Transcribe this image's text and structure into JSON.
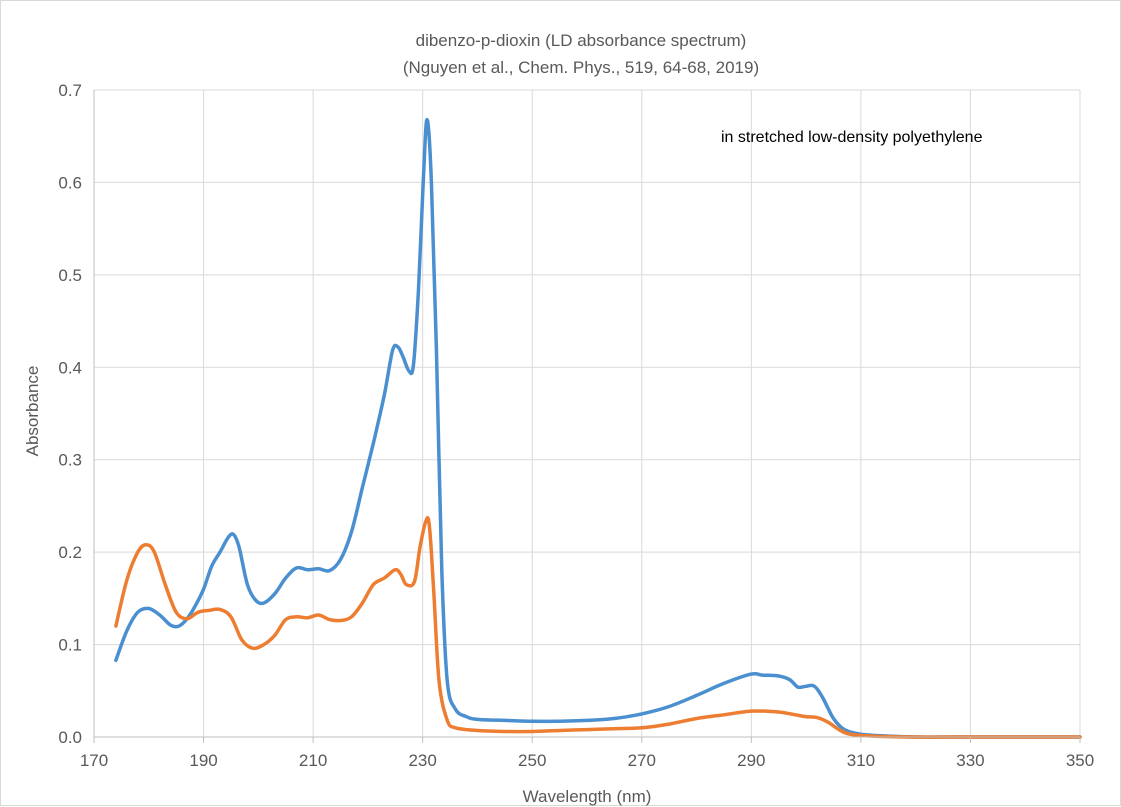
{
  "chart_data": {
    "type": "line",
    "title": "dibenzo-p-dioxin (LD absorbance spectrum)",
    "subtitle": "(Nguyen et al., Chem. Phys., 519, 64-68, 2019)",
    "xlabel": "Wavelength (nm)",
    "ylabel": "Absorbance",
    "annotation": "in stretched low-density polyethylene",
    "xlim": [
      170,
      350
    ],
    "ylim": [
      0,
      0.7
    ],
    "x_ticks": [
      "170",
      "190",
      "210",
      "230",
      "250",
      "270",
      "290",
      "310",
      "330",
      "350"
    ],
    "y_ticks": [
      "0.0",
      "0.1",
      "0.2",
      "0.3",
      "0.4",
      "0.5",
      "0.6",
      "0.7"
    ],
    "grid": true,
    "legend": "none",
    "series": [
      {
        "color": "#4a8fcf",
        "points": [
          [
            174,
            0.083
          ],
          [
            176,
            0.115
          ],
          [
            178,
            0.135
          ],
          [
            180,
            0.139
          ],
          [
            182,
            0.132
          ],
          [
            184,
            0.121
          ],
          [
            185.5,
            0.12
          ],
          [
            187,
            0.128
          ],
          [
            188.5,
            0.142
          ],
          [
            190,
            0.16
          ],
          [
            191.5,
            0.185
          ],
          [
            193,
            0.2
          ],
          [
            194.5,
            0.216
          ],
          [
            195.5,
            0.219
          ],
          [
            196.5,
            0.205
          ],
          [
            198,
            0.165
          ],
          [
            199.5,
            0.148
          ],
          [
            201,
            0.145
          ],
          [
            203,
            0.155
          ],
          [
            205,
            0.172
          ],
          [
            207,
            0.183
          ],
          [
            209,
            0.181
          ],
          [
            211,
            0.182
          ],
          [
            213,
            0.18
          ],
          [
            215,
            0.192
          ],
          [
            217,
            0.222
          ],
          [
            219,
            0.27
          ],
          [
            221,
            0.318
          ],
          [
            223,
            0.37
          ],
          [
            224.5,
            0.418
          ],
          [
            225.5,
            0.422
          ],
          [
            226.5,
            0.41
          ],
          [
            227.5,
            0.396
          ],
          [
            228.3,
            0.402
          ],
          [
            229.2,
            0.48
          ],
          [
            230.1,
            0.6
          ],
          [
            230.8,
            0.668
          ],
          [
            231.6,
            0.6
          ],
          [
            232.5,
            0.42
          ],
          [
            233.5,
            0.18
          ],
          [
            234.5,
            0.06
          ],
          [
            236,
            0.03
          ],
          [
            238,
            0.022
          ],
          [
            240,
            0.019
          ],
          [
            245,
            0.018
          ],
          [
            250,
            0.017
          ],
          [
            255,
            0.017
          ],
          [
            260,
            0.018
          ],
          [
            265,
            0.02
          ],
          [
            270,
            0.025
          ],
          [
            275,
            0.033
          ],
          [
            280,
            0.045
          ],
          [
            285,
            0.058
          ],
          [
            290,
            0.068
          ],
          [
            292,
            0.067
          ],
          [
            295,
            0.066
          ],
          [
            297,
            0.062
          ],
          [
            298.5,
            0.054
          ],
          [
            300,
            0.055
          ],
          [
            301.5,
            0.055
          ],
          [
            303,
            0.043
          ],
          [
            305,
            0.02
          ],
          [
            307,
            0.008
          ],
          [
            310,
            0.003
          ],
          [
            315,
            0.001
          ],
          [
            320,
            0.0
          ],
          [
            330,
            0.0
          ],
          [
            340,
            0.0
          ],
          [
            350,
            0.0
          ]
        ]
      },
      {
        "color": "#ed7d31",
        "points": [
          [
            174,
            0.12
          ],
          [
            176,
            0.17
          ],
          [
            178,
            0.2
          ],
          [
            179.5,
            0.208
          ],
          [
            181,
            0.2
          ],
          [
            183,
            0.165
          ],
          [
            185,
            0.135
          ],
          [
            187,
            0.128
          ],
          [
            189,
            0.135
          ],
          [
            191,
            0.137
          ],
          [
            193,
            0.138
          ],
          [
            195,
            0.13
          ],
          [
            197,
            0.105
          ],
          [
            199,
            0.096
          ],
          [
            201,
            0.1
          ],
          [
            203,
            0.11
          ],
          [
            205,
            0.127
          ],
          [
            207,
            0.13
          ],
          [
            209,
            0.129
          ],
          [
            211,
            0.132
          ],
          [
            213,
            0.127
          ],
          [
            215,
            0.126
          ],
          [
            217,
            0.13
          ],
          [
            219,
            0.145
          ],
          [
            221,
            0.165
          ],
          [
            223,
            0.172
          ],
          [
            225,
            0.181
          ],
          [
            226,
            0.176
          ],
          [
            227,
            0.165
          ],
          [
            228.5,
            0.168
          ],
          [
            229.5,
            0.205
          ],
          [
            230.5,
            0.232
          ],
          [
            231.2,
            0.23
          ],
          [
            232,
            0.16
          ],
          [
            233,
            0.06
          ],
          [
            234.5,
            0.018
          ],
          [
            236,
            0.01
          ],
          [
            240,
            0.007
          ],
          [
            245,
            0.006
          ],
          [
            250,
            0.006
          ],
          [
            255,
            0.007
          ],
          [
            260,
            0.008
          ],
          [
            265,
            0.009
          ],
          [
            270,
            0.01
          ],
          [
            275,
            0.014
          ],
          [
            280,
            0.02
          ],
          [
            285,
            0.024
          ],
          [
            290,
            0.028
          ],
          [
            295,
            0.027
          ],
          [
            298,
            0.024
          ],
          [
            300,
            0.022
          ],
          [
            302,
            0.021
          ],
          [
            304,
            0.016
          ],
          [
            306,
            0.008
          ],
          [
            308,
            0.003
          ],
          [
            312,
            0.001
          ],
          [
            320,
            0.0
          ],
          [
            330,
            0.0
          ],
          [
            340,
            0.0
          ],
          [
            350,
            0.0
          ]
        ]
      }
    ]
  }
}
